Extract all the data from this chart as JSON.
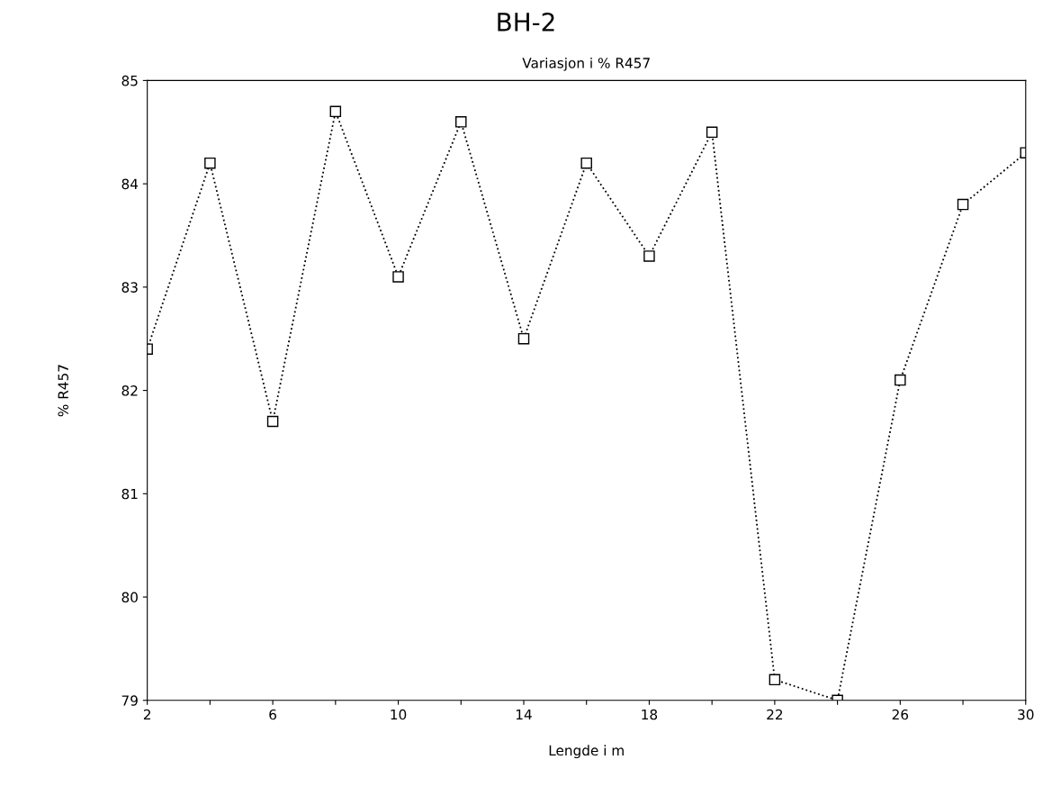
{
  "chart_data": {
    "type": "line",
    "title": "BH-2",
    "subtitle": "Variasjon i % R457",
    "xlabel": "Lengde i m",
    "ylabel": "% R457",
    "x": [
      2,
      4,
      6,
      8,
      10,
      12,
      14,
      16,
      18,
      20,
      22,
      24,
      26,
      28,
      30
    ],
    "series": [
      {
        "color": "#000000",
        "values": [
          82.4,
          84.2,
          81.7,
          84.7,
          83.1,
          84.6,
          82.5,
          84.2,
          83.3,
          84.5,
          79.2,
          79.0,
          82.1,
          83.8,
          84.3
        ]
      }
    ],
    "xlim": [
      2,
      30
    ],
    "ylim": [
      79,
      85
    ],
    "xticks": [
      2,
      {
        "value": 4,
        "label": null
      },
      6,
      {
        "value": 8,
        "label": null
      },
      10,
      {
        "value": 12,
        "label": null
      },
      14,
      {
        "value": 16,
        "label": null
      },
      18,
      {
        "value": 20,
        "label": null
      },
      22,
      {
        "value": 24,
        "label": null
      },
      26,
      {
        "value": 28,
        "label": null
      },
      30
    ],
    "yticks": [
      79,
      80,
      81,
      82,
      83,
      84,
      85
    ],
    "marker": "square",
    "line_style": "dotted",
    "grid": false,
    "legend": false
  }
}
